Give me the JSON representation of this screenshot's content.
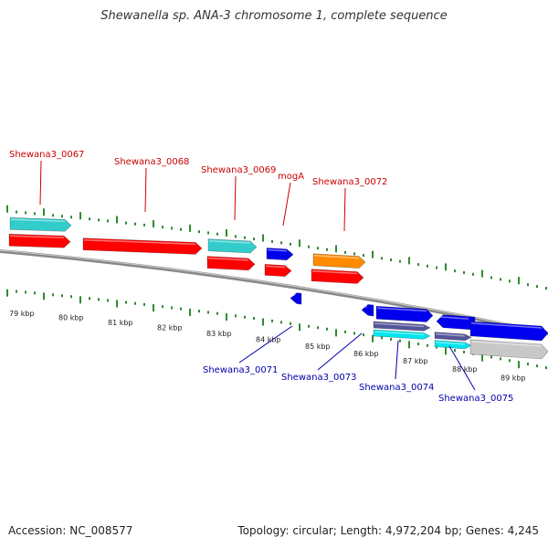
{
  "title": "Shewanella sp. ANA-3 chromosome 1, complete sequence",
  "footer": {
    "accession": "Accession: NC_008577",
    "summary": "Topology: circular; Length: 4,972,204 bp; Genes: 4,245"
  },
  "scale": {
    "tick_color": "#2e8b2e",
    "labels": [
      "79 kbp",
      "80 kbp",
      "81 kbp",
      "82 kbp",
      "83 kbp",
      "84 kbp",
      "85 kbp",
      "86 kbp",
      "87 kbp",
      "88 kbp",
      "89 kbp"
    ]
  },
  "colors": {
    "forward_cds": "#ff0000",
    "forward_gene": "#33cccc",
    "forward_orange": "#ff8c00",
    "forward_blue": "#0000ee",
    "reverse_cds": "#0000ee",
    "reverse_gene": "#00e5ee",
    "reverse_purple": "#555599",
    "reverse_gray": "#c8c8c8",
    "backbone": "#888888",
    "forward_label": "#cc0000",
    "reverse_label": "#0000aa"
  },
  "forward_labels": [
    "Shewana3_0067",
    "Shewana3_0068",
    "Shewana3_0069",
    "mogA",
    "Shewana3_0072"
  ],
  "reverse_labels": [
    "Shewana3_0071",
    "Shewana3_0073",
    "Shewana3_0074",
    "Shewana3_0075"
  ]
}
